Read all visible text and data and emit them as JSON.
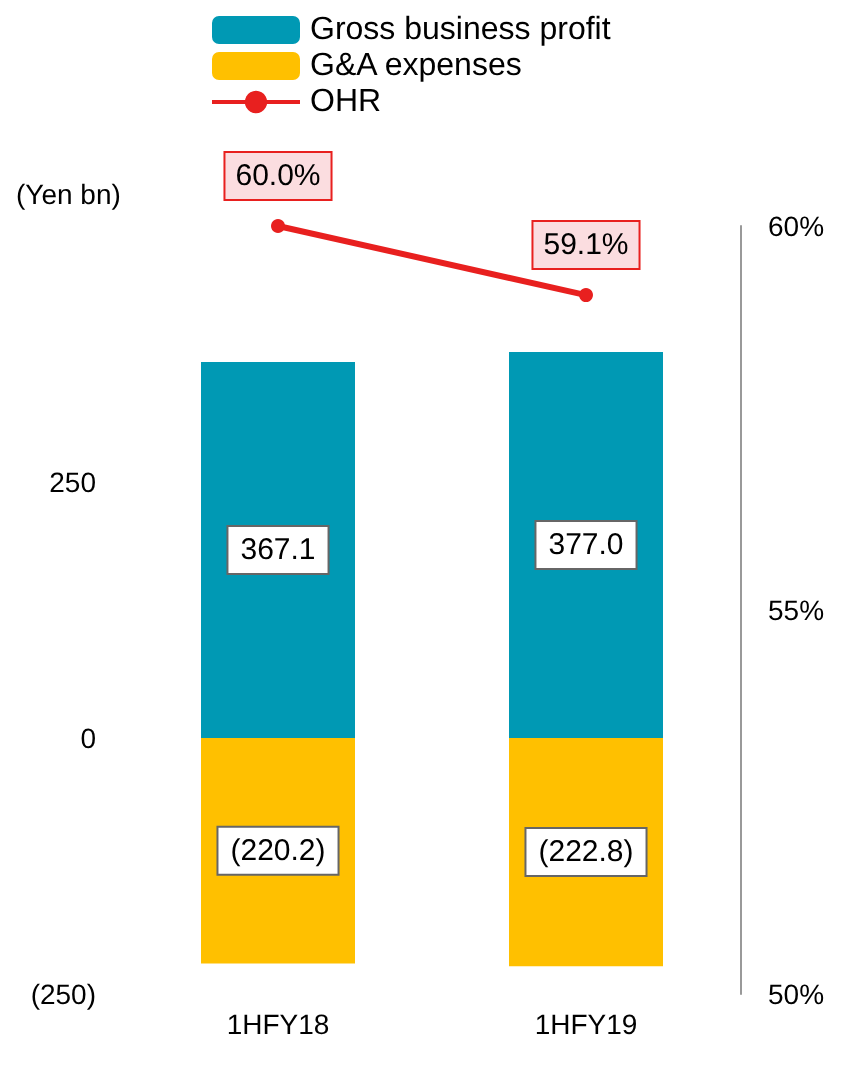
{
  "chart_data": {
    "type": "bar",
    "ylabel": "(Yen bn)",
    "categories": [
      "1HFY18",
      "1HFY19"
    ],
    "stacked": true,
    "legend": "top",
    "marker": "circle",
    "grid": false,
    "series": [
      {
        "name": "Gross business profit",
        "color": "#0099b4",
        "values": [
          367.1,
          377.0
        ],
        "value_labels": [
          "367.1",
          "377.0"
        ]
      },
      {
        "name": "G&A expenses",
        "color": "#ffc000",
        "values": [
          -220.2,
          -222.8
        ],
        "value_labels": [
          "(220.2)",
          "(222.8)"
        ]
      },
      {
        "name": "OHR",
        "type": "line",
        "axis": "y2",
        "color": "#e8201f",
        "values": [
          60.0,
          59.1
        ],
        "value_labels": [
          "60.0%",
          "59.1%"
        ]
      }
    ],
    "ylim": [
      -250,
      500
    ],
    "yticks": [
      {
        "value": -250,
        "label": "(250)"
      },
      0,
      250
    ],
    "y2lim": [
      50,
      60
    ],
    "y2ticks": [
      {
        "value": 50,
        "label": "50%"
      },
      {
        "value": 55,
        "label": "55%"
      },
      {
        "value": 60,
        "label": "60%"
      }
    ]
  }
}
